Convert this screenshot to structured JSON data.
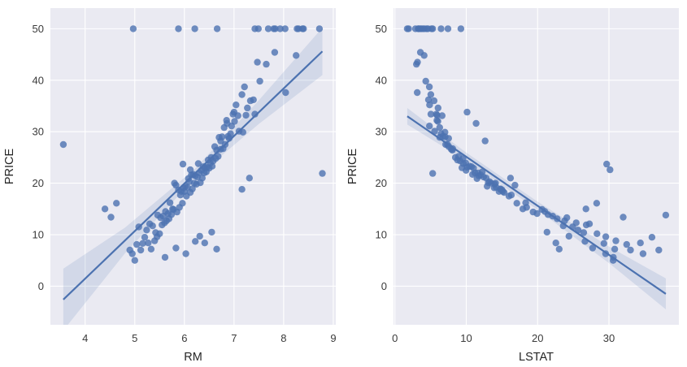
{
  "figure": {
    "background": "#ffffff",
    "description": "Two seaborn regression scatter plots of housing prices"
  },
  "style": {
    "axes_bg": "#eaeaf2",
    "grid_color": "#ffffff",
    "point_color": "#4c72b0",
    "line_color": "#4c72b0",
    "band_color": "#4c72b0",
    "band_opacity": 0.15,
    "point_opacity": 0.8,
    "tick_color": "#3a3a3a",
    "label_color": "#262626"
  },
  "points_fields": [
    "rm",
    "lstat",
    "price"
  ],
  "points": [
    [
      7.49,
      1.73,
      50
    ],
    [
      7.8,
      1.92,
      50
    ],
    [
      8.38,
      3.32,
      50
    ],
    [
      7.93,
      3.7,
      50
    ],
    [
      7.83,
      4.45,
      50
    ],
    [
      8.03,
      2.88,
      50
    ],
    [
      8.27,
      4.14,
      50
    ],
    [
      8.72,
      4.63,
      50
    ],
    [
      8.4,
      5.29,
      50
    ],
    [
      7.69,
      3.92,
      50
    ],
    [
      6.66,
      3.53,
      50
    ],
    [
      8.3,
      7.44,
      50
    ],
    [
      5.88,
      9.25,
      50
    ],
    [
      4.97,
      3.26,
      50
    ],
    [
      6.21,
      5.12,
      50
    ],
    [
      7.42,
      6.47,
      50
    ],
    [
      8.25,
      4.1,
      44.8
    ],
    [
      8.04,
      3.13,
      37.6
    ],
    [
      7.82,
      3.57,
      45.4
    ],
    [
      7.65,
      3.01,
      43.1
    ],
    [
      7.52,
      4.32,
      39.8
    ],
    [
      7.47,
      3.16,
      43.5
    ],
    [
      7.42,
      5.04,
      33.4
    ],
    [
      7.39,
      4.7,
      36.2
    ],
    [
      7.33,
      5.49,
      36.0
    ],
    [
      7.27,
      6.05,
      34.6
    ],
    [
      7.24,
      5.91,
      33.2
    ],
    [
      7.21,
      4.82,
      38.7
    ],
    [
      7.18,
      7.01,
      29.9
    ],
    [
      7.16,
      5.03,
      37.2
    ],
    [
      7.1,
      5.57,
      30.1
    ],
    [
      7.08,
      6.62,
      33.1
    ],
    [
      7.04,
      4.86,
      35.2
    ],
    [
      7.01,
      6.02,
      32.0
    ],
    [
      6.98,
      5.81,
      33.4
    ],
    [
      6.95,
      4.84,
      31.1
    ],
    [
      6.93,
      6.48,
      29.6
    ],
    [
      6.9,
      7.53,
      28.7
    ],
    [
      6.88,
      6.73,
      29.1
    ],
    [
      6.85,
      5.89,
      32.2
    ],
    [
      6.82,
      7.37,
      27.5
    ],
    [
      6.8,
      6.27,
      30.8
    ],
    [
      6.78,
      8.1,
      26.7
    ],
    [
      6.76,
      7.04,
      29.0
    ],
    [
      6.73,
      7.9,
      26.6
    ],
    [
      6.7,
      6.29,
      28.9
    ],
    [
      6.68,
      8.93,
      25.2
    ],
    [
      6.65,
      8.05,
      26.4
    ],
    [
      6.63,
      9.54,
      24.8
    ],
    [
      6.61,
      7.56,
      27.1
    ],
    [
      6.58,
      9.16,
      24.3
    ],
    [
      6.56,
      10.45,
      23.3
    ],
    [
      6.54,
      8.47,
      25.0
    ],
    [
      6.52,
      9.93,
      23.9
    ],
    [
      6.5,
      11.02,
      22.9
    ],
    [
      6.48,
      8.77,
      24.5
    ],
    [
      6.46,
      10.13,
      23.1
    ],
    [
      6.44,
      12.23,
      22.2
    ],
    [
      6.42,
      9.39,
      23.0
    ],
    [
      6.4,
      11.64,
      22.0
    ],
    [
      6.38,
      10.74,
      23.2
    ],
    [
      6.36,
      12.79,
      21.0
    ],
    [
      6.34,
      9.97,
      22.5
    ],
    [
      6.32,
      13.09,
      20.1
    ],
    [
      6.3,
      11.22,
      22.0
    ],
    [
      6.28,
      9.59,
      23.8
    ],
    [
      6.26,
      12.43,
      21.2
    ],
    [
      6.24,
      13.98,
      19.8
    ],
    [
      6.22,
      11.77,
      21.4
    ],
    [
      6.2,
      13.51,
      20.0
    ],
    [
      6.18,
      10.88,
      21.7
    ],
    [
      6.16,
      14.81,
      18.9
    ],
    [
      6.14,
      12.03,
      21.6
    ],
    [
      6.12,
      15.3,
      18.2
    ],
    [
      6.1,
      13.27,
      20.3
    ],
    [
      6.08,
      11.5,
      20.9
    ],
    [
      6.06,
      14.19,
      19.2
    ],
    [
      6.04,
      15.98,
      17.5
    ],
    [
      6.02,
      12.93,
      19.4
    ],
    [
      6.0,
      15.12,
      18.4
    ],
    [
      5.98,
      13.92,
      19.1
    ],
    [
      5.96,
      17.09,
      16.1
    ],
    [
      5.94,
      14.59,
      18.4
    ],
    [
      5.92,
      16.31,
      17.7
    ],
    [
      5.9,
      18.46,
      15.3
    ],
    [
      5.88,
      15.02,
      18.7
    ],
    [
      5.85,
      19.37,
      14.4
    ],
    [
      5.83,
      16.82,
      19.6
    ],
    [
      5.8,
      14.1,
      20.0
    ],
    [
      5.78,
      20.62,
      14.9
    ],
    [
      5.76,
      17.93,
      15.0
    ],
    [
      5.74,
      21.46,
      13.9
    ],
    [
      5.71,
      18.33,
      16.2
    ],
    [
      5.69,
      22.74,
      13.1
    ],
    [
      5.67,
      19.92,
      14.1
    ],
    [
      5.64,
      23.79,
      12.7
    ],
    [
      5.62,
      21.02,
      14.5
    ],
    [
      5.6,
      25.41,
      12.3
    ],
    [
      5.57,
      22.11,
      13.6
    ],
    [
      5.55,
      26.82,
      11.9
    ],
    [
      5.52,
      24.1,
      13.3
    ],
    [
      5.5,
      28.32,
      10.2
    ],
    [
      5.45,
      29.55,
      9.6
    ],
    [
      5.42,
      26.45,
      10.4
    ],
    [
      5.4,
      30.97,
      8.8
    ],
    [
      5.36,
      23.6,
      11.7
    ],
    [
      5.33,
      30.81,
      7.2
    ],
    [
      5.3,
      27.26,
      12.1
    ],
    [
      5.27,
      34.41,
      8.4
    ],
    [
      5.24,
      25.68,
      10.9
    ],
    [
      5.2,
      36.03,
      9.5
    ],
    [
      5.16,
      29.29,
      8.3
    ],
    [
      5.12,
      33.02,
      7.0
    ],
    [
      5.08,
      24.91,
      11.5
    ],
    [
      5.04,
      32.48,
      8.1
    ],
    [
      5.0,
      30.59,
      5.0
    ],
    [
      4.95,
      34.77,
      6.3
    ],
    [
      4.9,
      36.98,
      7.0
    ],
    [
      3.56,
      7.12,
      27.5
    ],
    [
      8.78,
      5.29,
      21.9
    ],
    [
      4.63,
      28.28,
      16.1
    ],
    [
      4.52,
      31.99,
      13.4
    ],
    [
      4.4,
      26.77,
      15.0
    ],
    [
      5.97,
      29.68,
      23.7
    ],
    [
      6.12,
      30.15,
      22.6
    ],
    [
      5.46,
      37.97,
      13.8
    ],
    [
      6.65,
      23.03,
      7.2
    ],
    [
      6.41,
      22.56,
      8.4
    ],
    [
      6.22,
      26.64,
      8.7
    ],
    [
      6.03,
      29.53,
      6.3
    ],
    [
      5.83,
      27.71,
      7.4
    ],
    [
      5.61,
      30.62,
      5.6
    ],
    [
      6.55,
      21.32,
      10.5
    ],
    [
      6.31,
      24.39,
      9.7
    ],
    [
      7.0,
      10.11,
      33.8
    ],
    [
      6.86,
      11.38,
      31.6
    ],
    [
      6.73,
      12.64,
      28.2
    ],
    [
      7.16,
      14.79,
      18.8
    ],
    [
      7.31,
      16.2,
      21.0
    ]
  ],
  "chart_data": [
    {
      "type": "scatter",
      "title": "",
      "xlabel": "RM",
      "ylabel": "PRICE",
      "x_field": 0,
      "y_field": 2,
      "xlim": [
        3.3,
        9.05
      ],
      "ylim": [
        -7.5,
        54
      ],
      "xticks": [
        4,
        5,
        6,
        7,
        8,
        9
      ],
      "yticks": [
        0,
        10,
        20,
        30,
        40,
        50
      ],
      "grid": true,
      "legend": "none",
      "regression_line": {
        "x": [
          3.56,
          8.78
        ],
        "y": [
          -2.6,
          45.6
        ]
      },
      "confidence_band": {
        "x": [
          3.56,
          4.8,
          6.2,
          7.5,
          8.78
        ],
        "upper": [
          3.4,
          11.35,
          22.68,
          36.1,
          50.2
        ],
        "lower": [
          -8.6,
          6.35,
          20.88,
          31.5,
          41.0
        ]
      }
    },
    {
      "type": "scatter",
      "title": "",
      "xlabel": "LSTAT",
      "ylabel": "PRICE",
      "x_field": 1,
      "y_field": 2,
      "xlim": [
        -0.2,
        39.8
      ],
      "ylim": [
        -7.5,
        54
      ],
      "xticks": [
        0,
        10,
        20,
        30
      ],
      "yticks": [
        0,
        10,
        20,
        30,
        40,
        50
      ],
      "grid": true,
      "legend": "none",
      "regression_line": {
        "x": [
          1.73,
          37.97
        ],
        "y": [
          33.0,
          -1.5
        ]
      },
      "confidence_band": {
        "x": [
          1.73,
          10,
          20,
          30,
          37.97
        ],
        "upper": [
          34.6,
          25.93,
          16.41,
          7.69,
          1.5
        ],
        "lower": [
          31.4,
          24.33,
          14.81,
          4.49,
          -4.5
        ]
      }
    }
  ]
}
